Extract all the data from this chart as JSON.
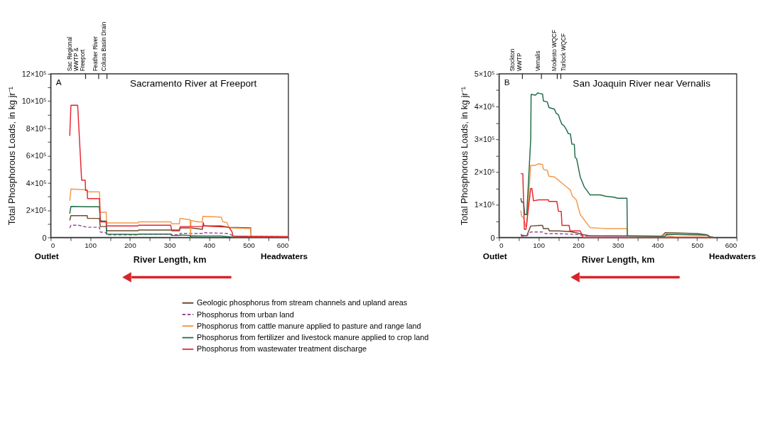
{
  "chart_data": [
    {
      "type": "line",
      "title": "Sacramento River at Freeport",
      "xlabel": "River Length, km",
      "ylabel": "Total Phosphorous Loads, in kg jr⁻¹",
      "annotations": [
        "A",
        "Outlet",
        "Headwaters"
      ],
      "legend": "bottom",
      "grid": false,
      "xlim": [
        0,
        600
      ],
      "xticks": [
        0,
        {
          "value": 50,
          "label": null
        },
        100,
        {
          "value": 150,
          "label": null
        },
        200,
        {
          "value": 250,
          "label": null
        },
        300,
        {
          "value": 350,
          "label": null
        },
        400,
        {
          "value": 450,
          "label": null
        },
        500,
        {
          "value": 550,
          "label": null
        },
        600
      ],
      "ylim": [
        0,
        1200000
      ],
      "yticks": [
        0,
        {
          "value": 100000,
          "label": null
        },
        {
          "value": 200000,
          "label": "2×10⁵"
        },
        {
          "value": 300000,
          "label": null
        },
        {
          "value": 400000,
          "label": "4×10⁵"
        },
        {
          "value": 500000,
          "label": null
        },
        {
          "value": 600000,
          "label": "6×10⁵"
        },
        {
          "value": 700000,
          "label": null
        },
        {
          "value": 800000,
          "label": "8×10⁵"
        },
        {
          "value": 900000,
          "label": null
        },
        {
          "value": 1000000,
          "label": "10×10⁵"
        },
        {
          "value": 1100000,
          "label": null
        },
        {
          "value": 1200000,
          "label": "12×10⁵"
        }
      ],
      "ref_lines": [
        {
          "axis": "x",
          "value": 88,
          "label": "Sac Regional\nWWTP &\nFreeport"
        },
        {
          "axis": "x",
          "value": 121,
          "label": "Feather River"
        },
        {
          "axis": "x",
          "value": 142,
          "label": "Colusa Basin Drain"
        }
      ],
      "series": [
        {
          "name": "Geologic phosphorus from stream channels and upland areas",
          "color": "#6e4a2e",
          "x": [
            48,
            51,
            92,
            93,
            123,
            125,
            140,
            141,
            220,
            222,
            303,
            306,
            325,
            327,
            354,
            383,
            384,
            430,
            450,
            505,
            506,
            600
          ],
          "values": [
            125000,
            160000,
            160000,
            140000,
            140000,
            80000,
            80000,
            50000,
            50000,
            55000,
            55000,
            50000,
            50000,
            70000,
            70000,
            60000,
            85000,
            85000,
            75000,
            70000,
            5000,
            5000
          ]
        },
        {
          "name": "Phosphorus from urban land",
          "color": "#9a4a9a",
          "line_style": "dashed",
          "x": [
            48,
            51,
            70,
            92,
            123,
            125,
            140,
            141,
            220,
            222,
            303,
            306,
            325,
            327,
            383,
            384,
            445,
            455,
            460,
            600
          ],
          "values": [
            70000,
            90000,
            90000,
            75000,
            75000,
            40000,
            35000,
            20000,
            20000,
            25000,
            25000,
            20000,
            20000,
            30000,
            30000,
            35000,
            30000,
            20000,
            10000,
            5000
          ]
        },
        {
          "name": "Phosphorus from cattle manure applied to pasture and range land",
          "color": "#f3994a",
          "x": [
            48,
            51,
            92,
            93,
            123,
            125,
            140,
            141,
            220,
            222,
            303,
            306,
            325,
            326,
            352,
            353,
            354,
            370,
            383,
            384,
            430,
            435,
            445,
            450,
            505,
            506,
            600
          ],
          "values": [
            270000,
            355000,
            350000,
            335000,
            335000,
            185000,
            185000,
            107000,
            107000,
            115000,
            115000,
            100000,
            100000,
            140000,
            130000,
            0,
            125000,
            115000,
            115000,
            155000,
            150000,
            115000,
            110000,
            70000,
            65000,
            5000,
            5000
          ]
        },
        {
          "name": "Phosphorus from fertilizer and livestock manure applied to crop land",
          "color": "#1f6b46",
          "x": [
            48,
            51,
            92,
            123,
            125,
            130,
            140,
            141,
            220,
            222,
            303,
            305,
            325,
            327,
            352,
            353,
            354,
            384,
            430,
            450,
            460,
            600
          ],
          "values": [
            175000,
            228000,
            225000,
            225000,
            125000,
            120000,
            120000,
            25000,
            22000,
            25000,
            25000,
            15000,
            15000,
            18000,
            15000,
            0,
            12000,
            10000,
            10000,
            5000,
            2000,
            2000
          ]
        },
        {
          "name": "Phosphorus from wastewater treatment discharge",
          "color": "#e8232c",
          "x": [
            48,
            51,
            68,
            78,
            87,
            88,
            92,
            93,
            123,
            125,
            140,
            141,
            220,
            222,
            303,
            305,
            325,
            327,
            384,
            385,
            387,
            450,
            458,
            460,
            505,
            600
          ],
          "values": [
            745000,
            970000,
            970000,
            420000,
            420000,
            345000,
            345000,
            285000,
            285000,
            115000,
            115000,
            85000,
            85000,
            90000,
            90000,
            55000,
            55000,
            80000,
            80000,
            110000,
            85000,
            75000,
            40000,
            10000,
            8000,
            5000
          ]
        }
      ]
    },
    {
      "type": "line",
      "title": "San Joaquin River near Vernalis",
      "xlabel": "River Length, km",
      "ylabel": "Total Phosphorous Loads, in kg jr⁻¹",
      "annotations": [
        "B",
        "Outlet",
        "Headwaters"
      ],
      "grid": false,
      "xlim": [
        0,
        600
      ],
      "xticks": [
        0,
        {
          "value": 50,
          "label": null
        },
        100,
        {
          "value": 150,
          "label": null
        },
        200,
        {
          "value": 250,
          "label": null
        },
        300,
        {
          "value": 350,
          "label": null
        },
        400,
        {
          "value": 450,
          "label": null
        },
        500,
        {
          "value": 550,
          "label": null
        },
        600
      ],
      "ylim": [
        0,
        500000
      ],
      "yticks": [
        0,
        {
          "value": 50000,
          "label": null
        },
        {
          "value": 100000,
          "label": "1×10⁵"
        },
        {
          "value": 150000,
          "label": null
        },
        {
          "value": 200000,
          "label": "2×10⁵"
        },
        {
          "value": 250000,
          "label": null
        },
        {
          "value": 300000,
          "label": "3×10⁵"
        },
        {
          "value": 350000,
          "label": null
        },
        {
          "value": 400000,
          "label": "4×10⁵"
        },
        {
          "value": 450000,
          "label": null
        },
        {
          "value": 500000,
          "label": "5×10⁵"
        }
      ],
      "ref_lines": [
        {
          "axis": "x",
          "value": 59,
          "label": "Stockton\nWWTP"
        },
        {
          "axis": "x",
          "value": 107,
          "label": "Vernalis"
        },
        {
          "axis": "x",
          "value": 147,
          "label": "Modesto WQCF"
        },
        {
          "axis": "x",
          "value": 156,
          "label": "Turlock WQCF"
        }
      ],
      "series": [
        {
          "color": "#6e4a2e",
          "x": [
            55,
            57,
            70,
            80,
            102,
            110,
            112,
            125,
            127,
            150,
            180,
            200,
            215,
            230,
            323,
            410,
            420,
            440,
            500,
            525,
            533,
            540
          ],
          "values": [
            10000,
            7000,
            5000,
            35000,
            37000,
            37000,
            27000,
            27000,
            20000,
            20000,
            18000,
            13000,
            8000,
            5000,
            5000,
            3000,
            15000,
            14000,
            12000,
            8000,
            1000,
            1000
          ]
        },
        {
          "color": "#9a4a9a",
          "line_style": "dashed",
          "x": [
            55,
            60,
            70,
            80,
            110,
            117,
            140,
            200,
            215,
            323
          ],
          "values": [
            5000,
            4000,
            5000,
            17000,
            17000,
            12000,
            12000,
            9000,
            5000,
            4000
          ]
        },
        {
          "color": "#f3994a",
          "x": [
            55,
            57,
            62,
            67,
            70,
            80,
            90,
            100,
            110,
            112,
            122,
            126,
            140,
            150,
            160,
            170,
            180,
            185,
            195,
            205,
            230,
            260,
            270,
            323,
            324,
            410,
            420,
            425,
            450,
            540
          ],
          "values": [
            82000,
            65000,
            60000,
            35000,
            35000,
            220000,
            220000,
            225000,
            223000,
            208000,
            205000,
            187000,
            185000,
            175000,
            165000,
            155000,
            145000,
            127000,
            115000,
            70000,
            30000,
            28000,
            27000,
            27000,
            5000,
            4000,
            10000,
            5000,
            1000,
            1000
          ]
        },
        {
          "color": "#1f6b46",
          "x": [
            55,
            57,
            62,
            65,
            70,
            80,
            81,
            92,
            98,
            102,
            110,
            112,
            122,
            126,
            140,
            144,
            150,
            154,
            159,
            163,
            170,
            175,
            180,
            184,
            190,
            192,
            196,
            205,
            215,
            230,
            255,
            270,
            290,
            300,
            323,
            324,
            420,
            423,
            527,
            533,
            540
          ],
          "values": [
            120000,
            108000,
            108000,
            70000,
            70000,
            300000,
            437000,
            435000,
            442000,
            440000,
            438000,
            417000,
            414000,
            397000,
            392000,
            380000,
            375000,
            360000,
            345000,
            343000,
            330000,
            317000,
            317000,
            285000,
            285000,
            245000,
            240000,
            185000,
            155000,
            130000,
            130000,
            126000,
            123000,
            120000,
            120000,
            5000,
            4000,
            10000,
            7000,
            2000,
            1000
          ]
        },
        {
          "color": "#e8232c",
          "x": [
            55,
            60,
            64,
            68,
            80,
            83,
            87,
            100,
            125,
            126,
            146,
            150,
            157,
            159,
            177,
            179,
            205,
            212,
            540
          ],
          "values": [
            195000,
            195000,
            25000,
            25000,
            150000,
            150000,
            112000,
            115000,
            115000,
            110000,
            110000,
            80000,
            80000,
            37000,
            37000,
            20000,
            20000,
            0,
            0
          ]
        }
      ]
    }
  ]
}
